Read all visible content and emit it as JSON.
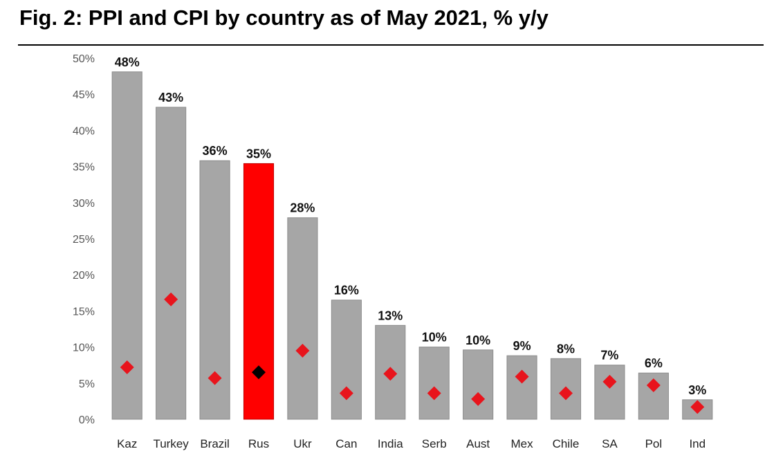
{
  "title": "Fig. 2: PPI and CPI by country as of May 2021, % y/y",
  "colors": {
    "bar": "#a6a6a6",
    "bar_highlight": "#ff0000",
    "marker": "#e8141c",
    "marker_highlight": "#000000"
  },
  "chart_data": {
    "type": "bar",
    "categories": [
      "Kaz",
      "Turkey",
      "Brazil",
      "Rus",
      "Ukr",
      "Can",
      "India",
      "Serb",
      "Aust",
      "Mex",
      "Chile",
      "SA",
      "Pol",
      "Ind"
    ],
    "series": [
      {
        "kind": "bar",
        "values": [
          48.1,
          43.2,
          35.8,
          35.4,
          27.9,
          16.5,
          13.0,
          10.0,
          9.6,
          8.8,
          8.4,
          7.5,
          6.4,
          2.7
        ],
        "labels": [
          "48%",
          "43%",
          "36%",
          "35%",
          "28%",
          "16%",
          "13%",
          "10%",
          "10%",
          "9%",
          "8%",
          "7%",
          "6%",
          "3%"
        ]
      },
      {
        "kind": "marker",
        "values": [
          7.2,
          16.6,
          5.7,
          6.5,
          9.5,
          3.6,
          6.3,
          3.6,
          2.8,
          5.9,
          3.6,
          5.2,
          4.7,
          1.7
        ]
      }
    ],
    "highlight_category": "Rus",
    "ylim": [
      0,
      50
    ],
    "yticks": [
      "0%",
      "5%",
      "10%",
      "15%",
      "20%",
      "25%",
      "30%",
      "35%",
      "40%",
      "45%",
      "50%"
    ],
    "grid": false,
    "legend": "none"
  }
}
